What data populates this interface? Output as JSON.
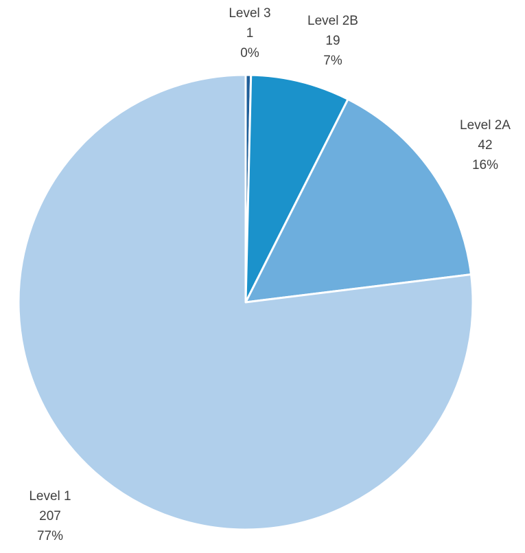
{
  "chart_data": {
    "type": "pie",
    "title": "",
    "start_angle_deg": 0,
    "direction": "clockwise",
    "legend": "none",
    "slices": [
      {
        "label": "Level 3",
        "value": 1,
        "percent": "0%",
        "color": "#1f5f9a"
      },
      {
        "label": "Level 2B",
        "value": 19,
        "percent": "7%",
        "color": "#1b92cb"
      },
      {
        "label": "Level 2A",
        "value": 42,
        "percent": "16%",
        "color": "#6daedd"
      },
      {
        "label": "Level 1",
        "value": 207,
        "percent": "77%",
        "color": "#b0cfeb"
      }
    ]
  }
}
